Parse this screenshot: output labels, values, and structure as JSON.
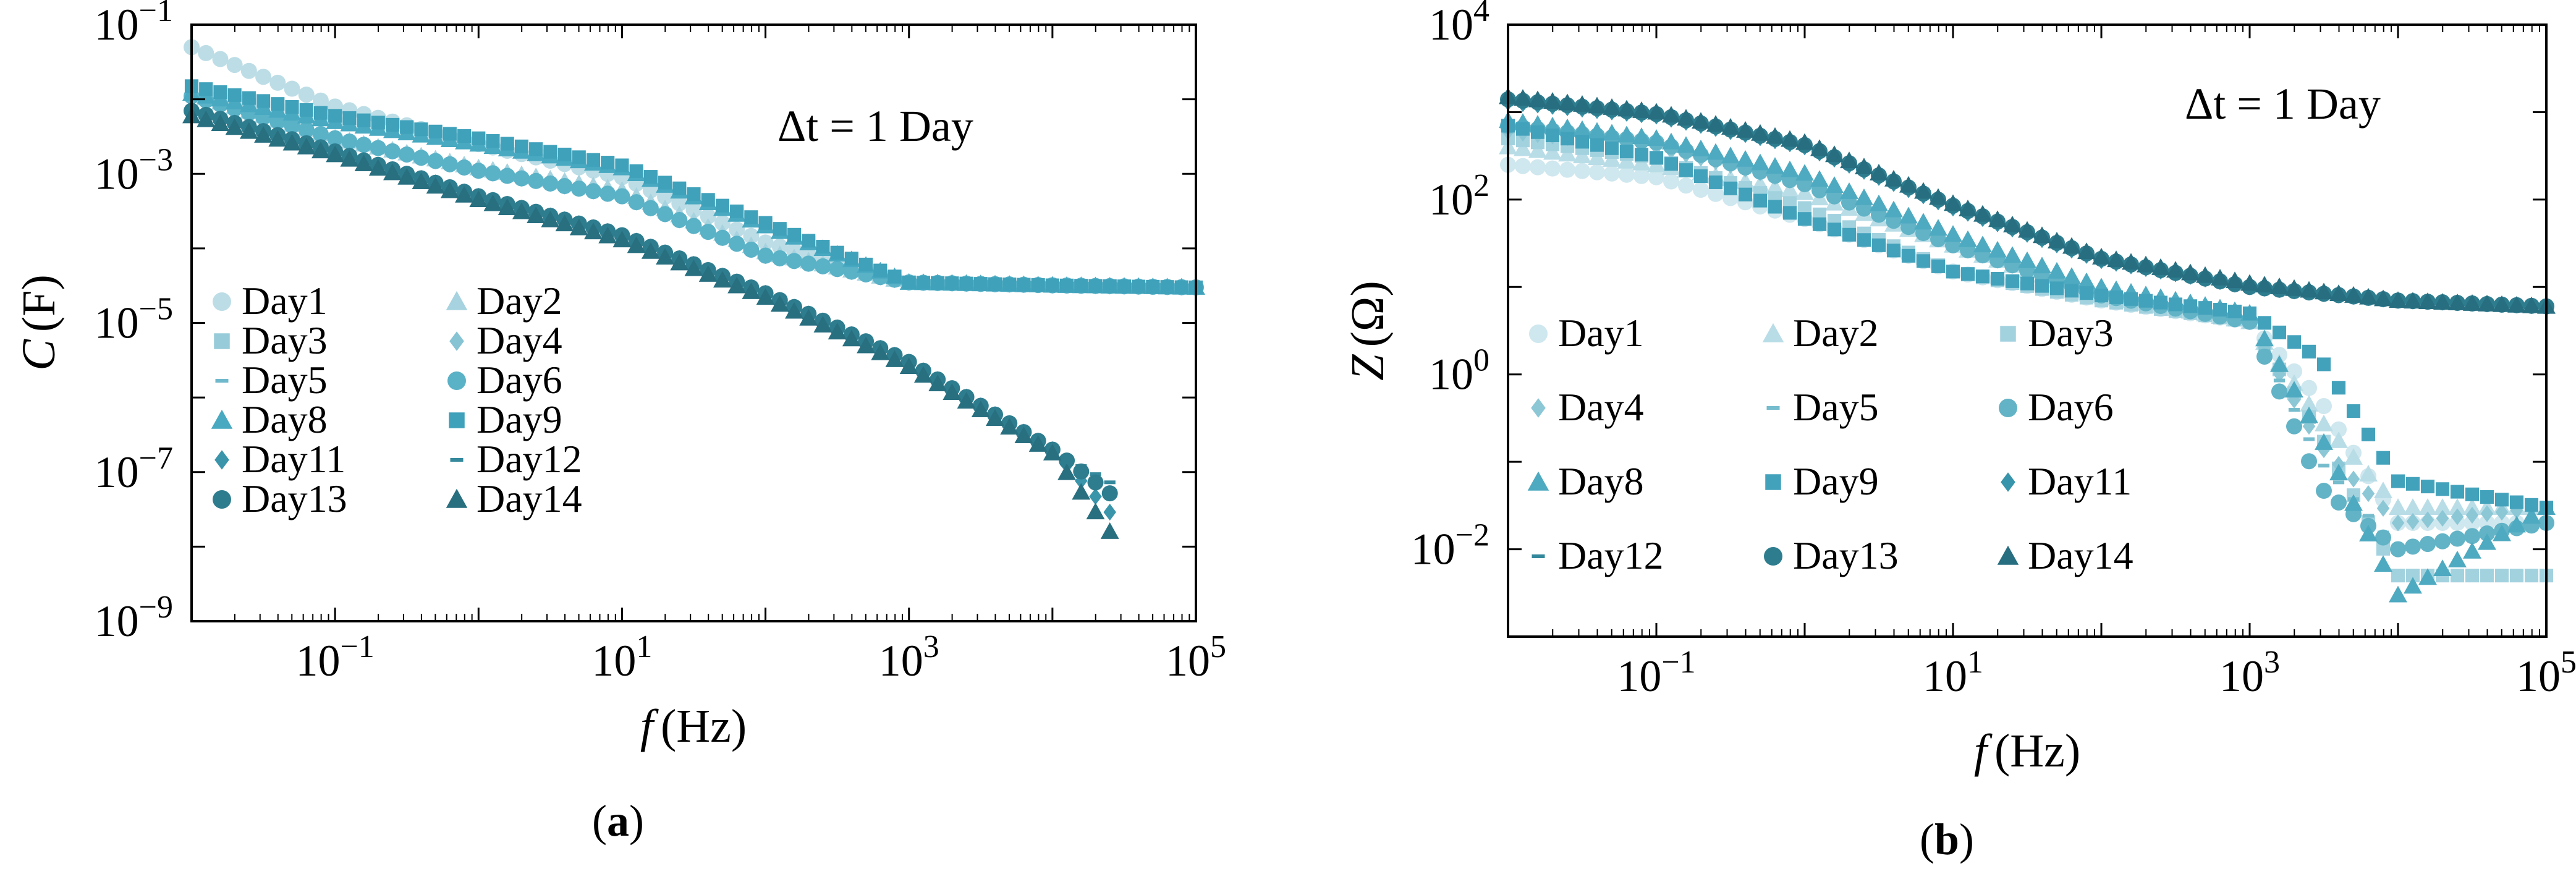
{
  "chart_data": [
    {
      "panel": "a",
      "caption": "(a)",
      "type": "scatter",
      "xscale": "log",
      "yscale": "log",
      "xlabel_var": "f",
      "xlabel_unit": "(Hz)",
      "ylabel_var": "C",
      "ylabel_unit": "(F)",
      "xlim": [
        0.01,
        100000
      ],
      "ylim": [
        1e-09,
        0.1
      ],
      "xticks": [
        {
          "value": 0.1,
          "base": "10",
          "exp": "−1"
        },
        {
          "value": 10,
          "base": "10",
          "exp": "1"
        },
        {
          "value": 1000,
          "base": "10",
          "exp": "3"
        },
        {
          "value": 100000,
          "base": "10",
          "exp": "5"
        }
      ],
      "yticks": [
        {
          "value": 1e-09,
          "base": "10",
          "exp": "−9"
        },
        {
          "value": 1e-07,
          "base": "10",
          "exp": "−7"
        },
        {
          "value": 1e-05,
          "base": "10",
          "exp": "−5"
        },
        {
          "value": 0.001,
          "base": "10",
          "exp": "−3"
        },
        {
          "value": 0.1,
          "base": "10",
          "exp": "−1"
        }
      ],
      "annotation": "Δt = 1 Day",
      "legend_position": "lower-left",
      "legend_columns": 2,
      "series": [
        {
          "name": "Day1",
          "marker": "circle",
          "color": "#bcdde6",
          "x": [
            0.01,
            0.1,
            1,
            10,
            100,
            1000,
            10000,
            100000
          ],
          "y": [
            0.05,
            0.008,
            0.0025,
            0.0009,
            0.00012,
            3.5e-05,
            3.2e-05,
            3e-05
          ]
        },
        {
          "name": "Day2",
          "marker": "triangle",
          "color": "#a6d3df",
          "x": [
            0.01,
            0.1,
            1,
            10,
            100,
            1000,
            10000,
            100000
          ],
          "y": [
            0.012,
            0.003,
            0.0012,
            0.0006,
            9e-05,
            3.5e-05,
            3.2e-05,
            3e-05
          ]
        },
        {
          "name": "Day3",
          "marker": "square",
          "color": "#97cbd9",
          "x": [
            0.01,
            0.1,
            1,
            10,
            100,
            1000,
            10000,
            100000
          ],
          "y": [
            0.012,
            0.005,
            0.0025,
            0.0012,
            0.0002,
            3.5e-05,
            3.2e-05,
            3e-05
          ]
        },
        {
          "name": "Day4",
          "marker": "diamond",
          "color": "#86c3d3",
          "x": [
            0.01,
            0.1,
            1,
            10,
            100,
            1000,
            10000,
            100000
          ],
          "y": [
            0.01,
            0.003,
            0.0011,
            0.0005,
            8e-05,
            3.5e-05,
            3.2e-05,
            3e-05
          ]
        },
        {
          "name": "Day5",
          "marker": "dash",
          "color": "#6fb9cc",
          "x": [
            0.01,
            0.1,
            1,
            10,
            100,
            1000,
            10000,
            100000
          ],
          "y": [
            0.01,
            0.003,
            0.0011,
            0.0005,
            8e-05,
            3.5e-05,
            3.2e-05,
            3e-05
          ]
        },
        {
          "name": "Day6",
          "marker": "circle",
          "color": "#5ab2c7",
          "x": [
            0.01,
            0.1,
            1,
            10,
            100,
            1000,
            10000,
            100000
          ],
          "y": [
            0.011,
            0.003,
            0.0011,
            0.0005,
            8e-05,
            3.5e-05,
            3.2e-05,
            3e-05
          ]
        },
        {
          "name": "Day8",
          "marker": "triangle",
          "color": "#48a9c1",
          "x": [
            0.01,
            0.1,
            1,
            10,
            100,
            1000,
            10000,
            100000
          ],
          "y": [
            0.012,
            0.005,
            0.0025,
            0.0012,
            0.0002,
            3.5e-05,
            3.2e-05,
            3e-05
          ]
        },
        {
          "name": "Day9",
          "marker": "square",
          "color": "#3fa1ba",
          "x": [
            0.01,
            0.1,
            1,
            10,
            100,
            1000,
            10000,
            100000
          ],
          "y": [
            0.015,
            0.006,
            0.003,
            0.0013,
            0.00022,
            3.5e-05,
            3.2e-05,
            3e-05
          ]
        },
        {
          "name": "Day11",
          "marker": "diamond",
          "color": "#3a95ab",
          "x": [
            0.01,
            0.1,
            1,
            10,
            100,
            1000,
            10000,
            30000
          ],
          "y": [
            0.007,
            0.002,
            0.0005,
            0.00015,
            2.5e-05,
            3e-06,
            2e-07,
            2e-08
          ]
        },
        {
          "name": "Day12",
          "marker": "dash",
          "color": "#35899c",
          "x": [
            0.01,
            0.1,
            1,
            10,
            100,
            1000,
            10000,
            30000
          ],
          "y": [
            0.007,
            0.002,
            0.0005,
            0.00015,
            2.5e-05,
            3e-06,
            2e-07,
            6e-08
          ]
        },
        {
          "name": "Day13",
          "marker": "circle",
          "color": "#2e7d8f",
          "x": [
            0.01,
            0.1,
            1,
            10,
            100,
            1000,
            10000,
            30000
          ],
          "y": [
            0.007,
            0.002,
            0.0005,
            0.00015,
            2.5e-05,
            3e-06,
            2e-07,
            4e-08
          ]
        },
        {
          "name": "Day14",
          "marker": "triangle",
          "color": "#286f80",
          "x": [
            0.01,
            0.1,
            1,
            10,
            100,
            1000,
            10000,
            30000
          ],
          "y": [
            0.006,
            0.0018,
            0.00045,
            0.00013,
            2.2e-05,
            2.6e-06,
            1.8e-07,
            1e-08
          ]
        }
      ]
    },
    {
      "panel": "b",
      "caption": "(b)",
      "type": "scatter",
      "xscale": "log",
      "yscale": "log",
      "xlabel_var": "f",
      "xlabel_unit": "(Hz)",
      "ylabel_var": "Z",
      "ylabel_unit": "(Ω)",
      "xlim": [
        0.01,
        100000
      ],
      "ylim": [
        0.001,
        10000
      ],
      "xticks": [
        {
          "value": 0.1,
          "base": "10",
          "exp": "−1"
        },
        {
          "value": 10,
          "base": "10",
          "exp": "1"
        },
        {
          "value": 1000,
          "base": "10",
          "exp": "3"
        },
        {
          "value": 100000,
          "base": "10",
          "exp": "5"
        }
      ],
      "yticks": [
        {
          "value": 0.01,
          "base": "10",
          "exp": "−2"
        },
        {
          "value": 1,
          "base": "10",
          "exp": "0"
        },
        {
          "value": 100,
          "base": "10",
          "exp": "2"
        },
        {
          "value": 10000,
          "base": "10",
          "exp": "4"
        }
      ],
      "annotation": "Δt = 1 Day",
      "legend_position": "lower-left",
      "legend_columns": 3,
      "series": [
        {
          "name": "Day1",
          "marker": "circle",
          "color": "#cfe7ee",
          "x": [
            0.01,
            0.1,
            1,
            10,
            100,
            1000,
            3000,
            10000,
            100000
          ],
          "y": [
            250,
            180,
            60,
            15,
            7,
            4,
            0.5,
            0.02,
            0.02
          ]
        },
        {
          "name": "Day2",
          "marker": "triangle",
          "color": "#b9dde7",
          "x": [
            0.01,
            0.1,
            1,
            10,
            100,
            1000,
            3000,
            10000,
            100000
          ],
          "y": [
            400,
            250,
            120,
            30,
            8,
            4,
            0.3,
            0.03,
            0.03
          ]
        },
        {
          "name": "Day3",
          "marker": "square",
          "color": "#a3d2df",
          "x": [
            0.01,
            0.1,
            1,
            10,
            100,
            1000,
            3000,
            10000,
            100000
          ],
          "y": [
            500,
            300,
            80,
            15,
            7,
            4,
            0.2,
            0.005,
            0.005
          ]
        },
        {
          "name": "Day4",
          "marker": "diamond",
          "color": "#8cc7d6",
          "x": [
            0.01,
            0.1,
            1,
            10,
            100,
            1000,
            3000,
            10000,
            100000
          ],
          "y": [
            600,
            400,
            150,
            30,
            8,
            4,
            0.15,
            0.02,
            0.03
          ]
        },
        {
          "name": "Day5",
          "marker": "dash",
          "color": "#75bccd",
          "x": [
            0.01,
            0.1,
            1,
            10,
            100,
            1000,
            3000,
            10000,
            100000
          ],
          "y": [
            600,
            400,
            150,
            30,
            8,
            4,
            0.1,
            0.01,
            0.02
          ]
        },
        {
          "name": "Day6",
          "marker": "circle",
          "color": "#62b3c6",
          "x": [
            0.01,
            0.1,
            1,
            10,
            100,
            1000,
            3000,
            10000,
            100000
          ],
          "y": [
            700,
            450,
            150,
            30,
            8,
            4,
            0.05,
            0.01,
            0.02
          ]
        },
        {
          "name": "Day8",
          "marker": "triangle",
          "color": "#4eaac0",
          "x": [
            0.01,
            0.1,
            1,
            10,
            100,
            1000,
            3000,
            10000,
            100000
          ],
          "y": [
            800,
            500,
            200,
            40,
            10,
            5,
            0.2,
            0.003,
            0.03
          ]
        },
        {
          "name": "Day9",
          "marker": "square",
          "color": "#43a2bb",
          "x": [
            0.01,
            0.1,
            1,
            10,
            100,
            1000,
            3000,
            10000,
            100000
          ],
          "y": [
            700,
            300,
            60,
            15,
            8,
            5,
            1.5,
            0.06,
            0.03
          ]
        },
        {
          "name": "Day11",
          "marker": "diamond",
          "color": "#3794aa",
          "x": [
            0.01,
            0.1,
            1,
            10,
            100,
            1000,
            10000,
            100000
          ],
          "y": [
            1300,
            900,
            400,
            80,
            20,
            10,
            7,
            6
          ]
        },
        {
          "name": "Day12",
          "marker": "dash",
          "color": "#33889b",
          "x": [
            0.01,
            0.1,
            1,
            10,
            100,
            1000,
            10000,
            100000
          ],
          "y": [
            1300,
            900,
            400,
            80,
            20,
            10,
            7,
            6
          ]
        },
        {
          "name": "Day13",
          "marker": "circle",
          "color": "#2e7d8f",
          "x": [
            0.01,
            0.1,
            1,
            10,
            100,
            1000,
            10000,
            100000
          ],
          "y": [
            1400,
            950,
            420,
            85,
            21,
            10,
            7,
            6
          ]
        },
        {
          "name": "Day14",
          "marker": "triangle",
          "color": "#276e80",
          "x": [
            0.01,
            0.1,
            1,
            10,
            100,
            1000,
            10000,
            100000
          ],
          "y": [
            1500,
            1000,
            450,
            90,
            22,
            11,
            7,
            6
          ]
        }
      ]
    }
  ]
}
